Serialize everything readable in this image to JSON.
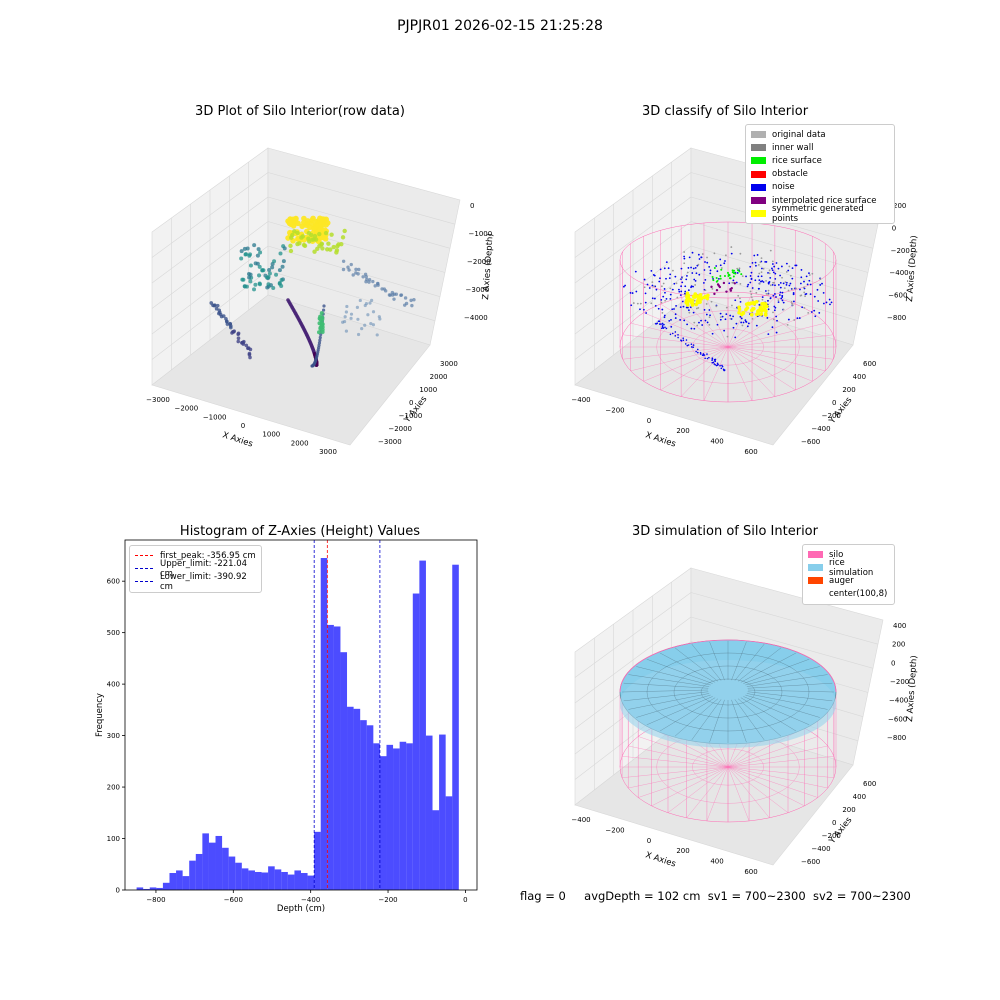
{
  "suptitle": "PJPJR01 2026-02-15 21:25:28",
  "panels": {
    "raw": {
      "title": "3D Plot of Silo Interior(row data)",
      "xlabel": "X Axies",
      "ylabel": "Y Axies",
      "zlabel": "Z Axies (Depth)",
      "xticks": [
        "−3000",
        "−2000",
        "−1000",
        "0",
        "1000",
        "2000",
        "3000"
      ],
      "yticks": [
        "3000",
        "2000",
        "1000",
        "0",
        "−1000",
        "−2000",
        "−3000"
      ],
      "zticks": [
        "0",
        "−1000",
        "−2000",
        "−3000",
        "−4000"
      ]
    },
    "classify": {
      "title": "3D classify of Silo Interior",
      "xlabel": "X Axies",
      "ylabel": "Y Axies",
      "zlabel": "Z Axies (Depth)",
      "xticks": [
        "−400",
        "−200",
        "0",
        "200",
        "400",
        "600"
      ],
      "yticks": [
        "600",
        "400",
        "200",
        "0",
        "−200",
        "−400",
        "−600"
      ],
      "zticks": [
        "200",
        "0",
        "−200",
        "−400",
        "−600",
        "−800"
      ],
      "legend": [
        {
          "label": "original data",
          "color": "#b0b0b0"
        },
        {
          "label": "inner wall",
          "color": "#808080"
        },
        {
          "label": "rice surface",
          "color": "#00ee00"
        },
        {
          "label": "obstacle",
          "color": "#ff0000"
        },
        {
          "label": "noise",
          "color": "#0000ee"
        },
        {
          "label": "interpolated rice surface",
          "color": "#800080"
        },
        {
          "label": "symmetric generated points",
          "color": "#ffff00"
        }
      ]
    },
    "simulation": {
      "title": "3D simulation of Silo Interior",
      "xlabel": "X Axies",
      "ylabel": "Y Axies",
      "zlabel": "Z Axies (Depth)",
      "xticks": [
        "−400",
        "−200",
        "0",
        "200",
        "400",
        "600"
      ],
      "yticks": [
        "600",
        "400",
        "200",
        "0",
        "−200",
        "−400",
        "−600"
      ],
      "zticks": [
        "400",
        "200",
        "0",
        "−200",
        "−400",
        "−600",
        "−800"
      ],
      "legend": [
        {
          "label": "silo",
          "color": "#ff69b4"
        },
        {
          "label": "rice simulation",
          "color": "#87ceeb"
        },
        {
          "label": "auger",
          "color": "#ff4500"
        },
        {
          "label": "center(100,8)",
          "color": ""
        }
      ]
    }
  },
  "status": {
    "flag": "flag = 0",
    "avg": "avgDepth = 102 cm",
    "sv1": "sv1 = 700~2300",
    "sv2": "sv2 = 700~2300"
  },
  "colors": {
    "hist_bar": "#0000ff",
    "first_peak": "#ff0000",
    "limits": "#0000cc",
    "silo": "#ff69b4",
    "rice": "#87ceeb"
  },
  "chart_data": {
    "type": "bar",
    "title": "Histogram of Z-Axies (Height) Values",
    "xlabel": "Depth (cm)",
    "ylabel": "Frequency",
    "xlim": [
      -880,
      30
    ],
    "ylim": [
      0,
      680
    ],
    "xticks": [
      -800,
      -600,
      -400,
      -200,
      0
    ],
    "yticks": [
      0,
      100,
      200,
      300,
      400,
      500,
      600
    ],
    "bin_width": 17,
    "bin_start": -850,
    "values": [
      5,
      2,
      5,
      4,
      14,
      33,
      38,
      27,
      57,
      70,
      110,
      92,
      105,
      82,
      65,
      53,
      42,
      38,
      35,
      34,
      46,
      40,
      35,
      30,
      38,
      33,
      28,
      113,
      645,
      515,
      512,
      462,
      356,
      352,
      330,
      320,
      285,
      260,
      282,
      275,
      288,
      285,
      576,
      640,
      300,
      155,
      302,
      182,
      632
    ],
    "vlines": [
      {
        "label": "first_peak: -356.95 cm",
        "x": -356.95,
        "color": "#ff0000"
      },
      {
        "label": "Upper_limit: -221.04 cm",
        "x": -221.04,
        "color": "#0000cc"
      },
      {
        "label": "Lower_limit: -390.92 cm",
        "x": -390.92,
        "color": "#0000cc"
      }
    ],
    "legend_position": "upper left",
    "grid": false
  }
}
